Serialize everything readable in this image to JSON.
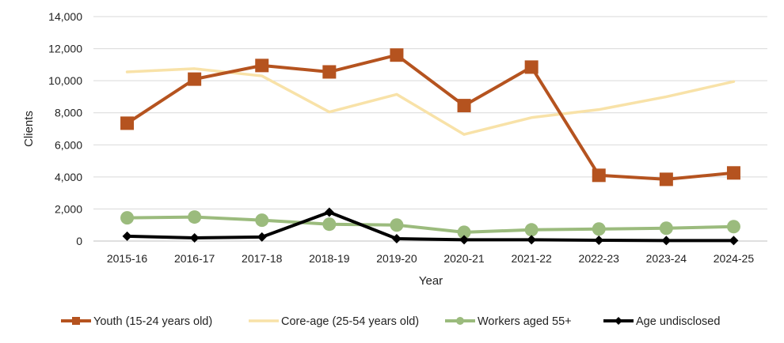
{
  "chart_data": {
    "type": "line",
    "title": "",
    "xlabel": "Year",
    "ylabel": "Clients",
    "categories": [
      "2015-16",
      "2016-17",
      "2017-18",
      "2018-19",
      "2019-20",
      "2020-21",
      "2021-22",
      "2022-23",
      "2023-24",
      "2024-25"
    ],
    "ylim": [
      0,
      14000
    ],
    "yticks": [
      0,
      2000,
      4000,
      6000,
      8000,
      10000,
      12000,
      14000
    ],
    "ytick_labels": [
      "0",
      "2,000",
      "4,000",
      "6,000",
      "8,000",
      "10,000",
      "12,000",
      "14,000"
    ],
    "grid": true,
    "legend_position": "bottom",
    "series": [
      {
        "name": "Youth (15-24 years old)",
        "color": "#b5531f",
        "marker": "square",
        "values": [
          7350,
          10100,
          10950,
          10550,
          11600,
          8450,
          10850,
          4100,
          3850,
          4250
        ]
      },
      {
        "name": "Core-age (25-54 years old)",
        "color": "#f8e2a8",
        "marker": "none",
        "values": [
          10550,
          10750,
          10300,
          8050,
          9150,
          6650,
          7700,
          8200,
          9000,
          9950
        ]
      },
      {
        "name": "Workers aged 55+",
        "color": "#9bbb7d",
        "marker": "circle",
        "values": [
          1450,
          1500,
          1300,
          1050,
          1000,
          550,
          700,
          750,
          800,
          900
        ]
      },
      {
        "name": "Age undisclosed",
        "color": "#000000",
        "marker": "diamond",
        "values": [
          300,
          200,
          250,
          1800,
          150,
          80,
          80,
          50,
          30,
          30
        ]
      }
    ]
  }
}
